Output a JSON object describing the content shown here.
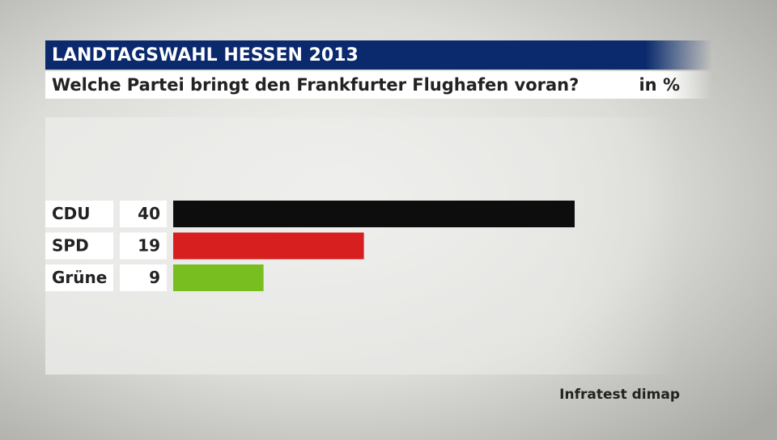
{
  "chart_data": {
    "type": "bar",
    "orientation": "horizontal",
    "title": "LANDTAGSWAHL HESSEN 2013",
    "subtitle": "Welche Partei bringt den Frankfurter Flughafen voran?",
    "unit": "in %",
    "categories": [
      "CDU",
      "SPD",
      "Grüne"
    ],
    "values": [
      40,
      19,
      9
    ],
    "colors": [
      "#0d0d0d",
      "#d81f1f",
      "#78be20"
    ],
    "source": "Infratest dimap"
  }
}
